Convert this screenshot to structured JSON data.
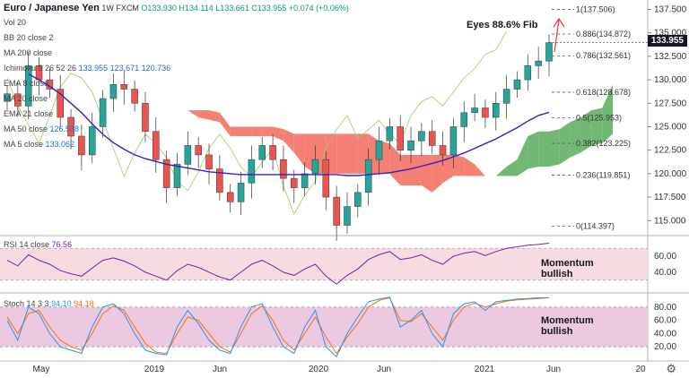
{
  "header": {
    "symbol": "Euro / Japanese Yen",
    "interval": "1W",
    "exchange": "FXCM",
    "ohlc": "O133.930 H134.114 L133.661 C133.955 +0.074 (+0.06%)"
  },
  "indicators": [
    {
      "label": "Vol 20",
      "value": ""
    },
    {
      "label": "BB 20 close 2",
      "value": ""
    },
    {
      "label": "MA 200 close",
      "value": ""
    },
    {
      "label": "Ichimoku 9 26 52 26",
      "value": "133.955 123.671 120.736"
    },
    {
      "label": "EMA 8 close",
      "value": ""
    },
    {
      "label": "MA 20 close",
      "value": ""
    },
    {
      "label": "EMA 21 close",
      "value": ""
    },
    {
      "label": "MA 50 close",
      "value": "126.538"
    },
    {
      "label": "MA 5 close",
      "value": "133.062"
    }
  ],
  "annotations": {
    "fib_note": "Eyes 88.6% Fib",
    "rsi_note_1": "Momentum",
    "rsi_note_2": "bullish",
    "stoch_note_1": "Momentum",
    "stoch_note_2": "bullish"
  },
  "colors": {
    "bull": "#26a69a",
    "bear": "#ef5350",
    "cloud_green": "#43a047",
    "cloud_red": "#f05545",
    "ma50": "#3f1dbf",
    "rsi": "#7b1fa2",
    "stoch_k": "#2196f3",
    "stoch_d": "#ff6d00"
  },
  "price_pill": "133.955",
  "chart_data": [
    {
      "type": "line",
      "title": "Euro / Japanese Yen, 1W, FXCM",
      "x_ticks": [
        "May",
        "2019",
        "Jun",
        "2020",
        "Jun",
        "2021",
        "Jun",
        "20"
      ],
      "y_ticks": [
        115.0,
        117.5,
        120.0,
        122.5,
        125.0,
        127.5,
        130.0,
        132.5,
        135.0,
        137.5
      ],
      "ylim": [
        113.5,
        138.5
      ],
      "series": [
        {
          "name": "EURJPY",
          "values": [
            128.5,
            127.2,
            131.5,
            130.0,
            129.0,
            126.0,
            124.0,
            122.0,
            125.0,
            128.0,
            129.5,
            129.0,
            127.5,
            124.5,
            121.5,
            118.5,
            121.0,
            123.0,
            122.0,
            120.5,
            118.0,
            117.0,
            119.0,
            121.5,
            123.0,
            121.5,
            119.5,
            118.5,
            120.0,
            121.5,
            117.5,
            114.5,
            116.5,
            118.0,
            121.5,
            123.5,
            125.0,
            122.5,
            123.5,
            124.5,
            123.0,
            122.0,
            125.0,
            126.5,
            127.0,
            126.0,
            127.5,
            129.0,
            130.0,
            131.5,
            132.0,
            133.955
          ]
        },
        {
          "name": "MA 50",
          "values": [
            null,
            null,
            130.6,
            130.0,
            129.3,
            128.5,
            127.5,
            126.5,
            125.3,
            124.2,
            123.3,
            122.6,
            122.0,
            121.6,
            121.3,
            121.0,
            120.8,
            120.6,
            120.4,
            120.2,
            120.1,
            120.0,
            119.9,
            119.9,
            119.9,
            119.9,
            119.9,
            119.9,
            119.9,
            119.9,
            119.9,
            119.9,
            119.8,
            119.8,
            119.9,
            120.0,
            120.1,
            120.3,
            120.5,
            120.8,
            121.1,
            121.4,
            121.8,
            122.2,
            122.7,
            123.2,
            123.7,
            124.3,
            124.9,
            125.6,
            126.2,
            126.538
          ]
        }
      ],
      "fib_levels": [
        {
          "label": "1(137.506)",
          "value": 137.506
        },
        {
          "label": "0.886(134.872)",
          "value": 134.872
        },
        {
          "label": "0.786(132.561)",
          "value": 132.561
        },
        {
          "label": "0.618(128.678)",
          "value": 128.678
        },
        {
          "label": "0.5(125.953)",
          "value": 125.953
        },
        {
          "label": "0.382(123.225)",
          "value": 123.225
        },
        {
          "label": "0.236(119.851)",
          "value": 119.851
        },
        {
          "label": "0(114.397)",
          "value": 114.397
        }
      ]
    },
    {
      "type": "line",
      "title": "RSI 14 close",
      "last_value": "76.56",
      "y_ticks": [
        40.0,
        60.0
      ],
      "ylim": [
        15,
        85
      ],
      "series": [
        {
          "name": "RSI",
          "values": [
            55,
            48,
            62,
            55,
            50,
            42,
            38,
            35,
            45,
            55,
            58,
            54,
            48,
            40,
            35,
            30,
            42,
            50,
            46,
            40,
            34,
            30,
            40,
            50,
            55,
            48,
            40,
            36,
            44,
            50,
            35,
            25,
            36,
            44,
            56,
            62,
            66,
            56,
            58,
            62,
            55,
            50,
            60,
            64,
            66,
            61,
            66,
            70,
            72,
            74,
            75,
            76.56
          ]
        }
      ]
    },
    {
      "type": "line",
      "title": "Stoch 14 3 3",
      "last_value_k": "94.10",
      "last_value_d": "94.18",
      "y_ticks": [
        20.0,
        40.0,
        60.0,
        80.0
      ],
      "ylim": [
        0,
        100
      ],
      "series": [
        {
          "name": "K",
          "values": [
            60,
            30,
            80,
            70,
            40,
            20,
            15,
            10,
            50,
            80,
            85,
            70,
            40,
            15,
            10,
            8,
            50,
            75,
            55,
            30,
            15,
            10,
            50,
            80,
            85,
            50,
            20,
            10,
            50,
            75,
            20,
            5,
            40,
            65,
            88,
            92,
            95,
            50,
            60,
            75,
            40,
            20,
            70,
            85,
            88,
            75,
            88,
            90,
            92,
            93,
            94,
            94.1
          ]
        },
        {
          "name": "D",
          "values": [
            65,
            40,
            70,
            75,
            50,
            30,
            20,
            15,
            40,
            70,
            82,
            75,
            50,
            25,
            12,
            10,
            40,
            65,
            60,
            40,
            20,
            12,
            40,
            70,
            82,
            60,
            30,
            15,
            40,
            65,
            35,
            10,
            35,
            55,
            80,
            90,
            94,
            60,
            58,
            70,
            50,
            30,
            60,
            80,
            86,
            80,
            85,
            89,
            91,
            92,
            93,
            94.18
          ]
        }
      ]
    }
  ]
}
